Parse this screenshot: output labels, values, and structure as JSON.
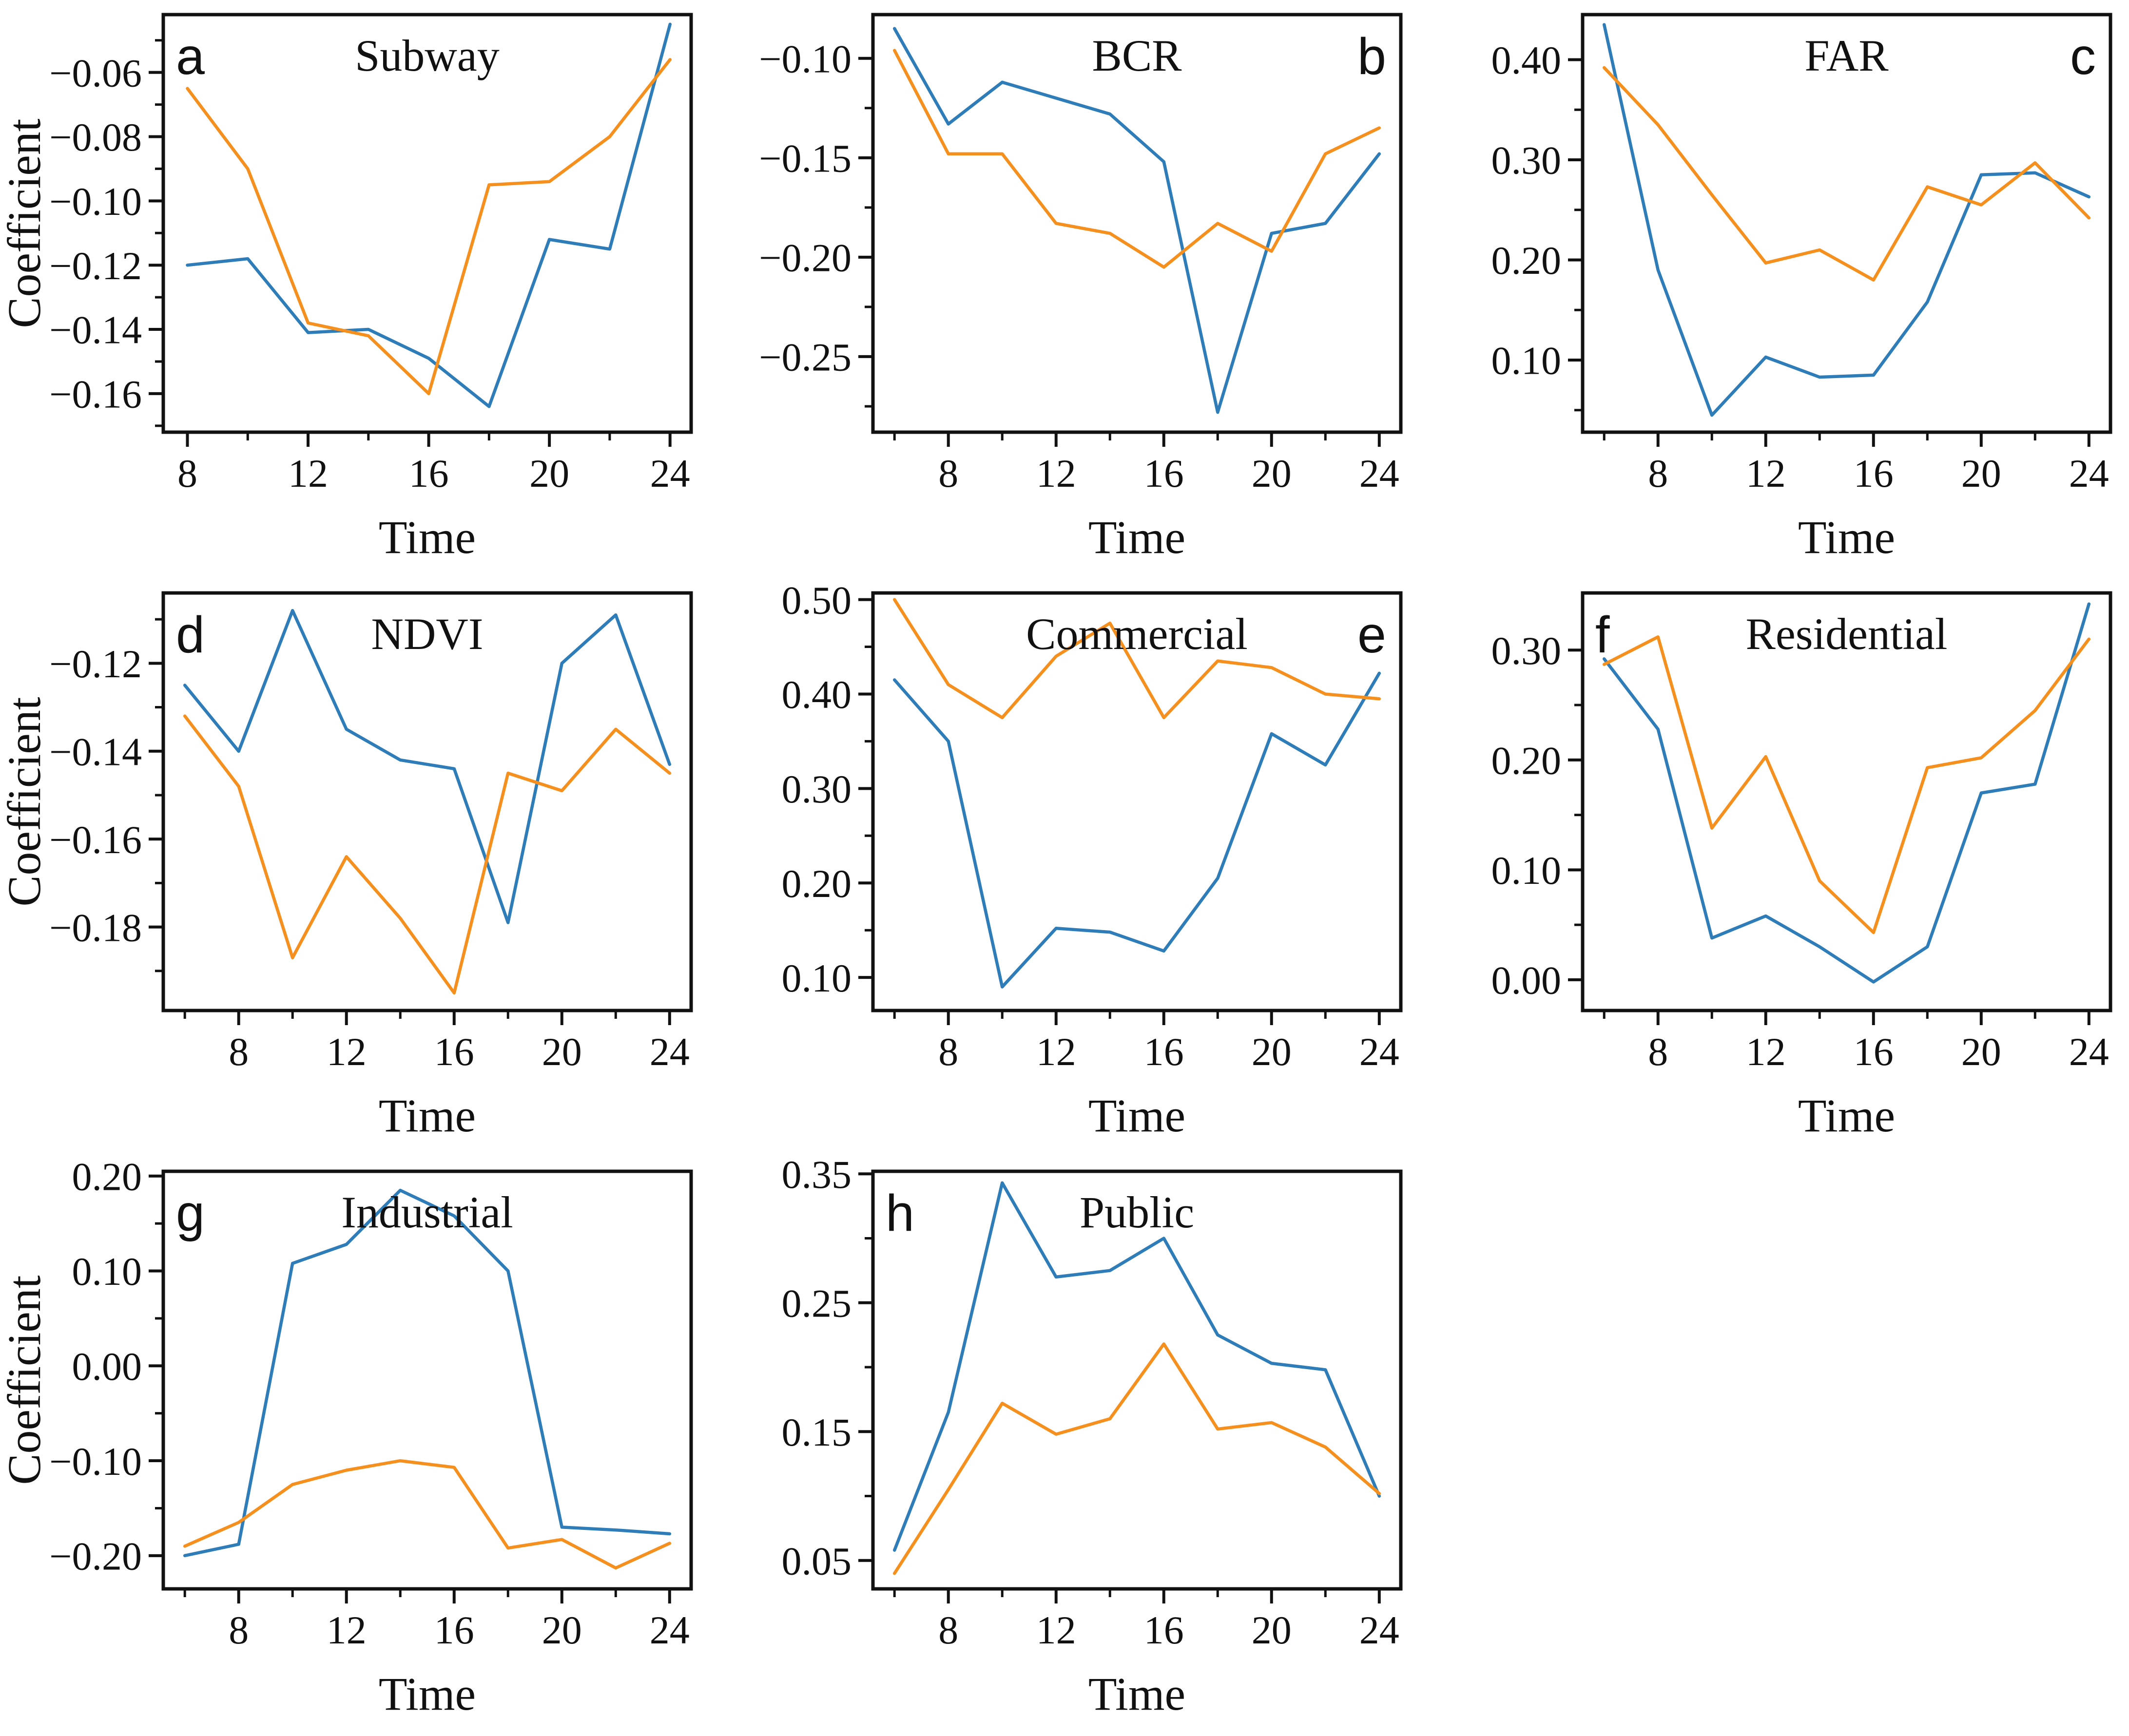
{
  "figure": {
    "xlabel": "Time",
    "ylabel": "Coefficient",
    "colors": {
      "blue": "#2e7cb8",
      "orange": "#f5901f",
      "frame": "#111111"
    },
    "series_names": [
      "blue",
      "orange"
    ]
  },
  "chart_data": [
    {
      "type": "line",
      "id": "a",
      "letter": "a",
      "letter_side": "left",
      "title": "Subway",
      "show_ylabel": true,
      "xlim": [
        7.2,
        24.7
      ],
      "ylim": [
        -0.172,
        -0.042
      ],
      "xticks": {
        "values": [
          8,
          12,
          16,
          20,
          24
        ],
        "labels": [
          "8",
          "12",
          "16",
          "20",
          "24"
        ]
      },
      "xminor": [
        10,
        14,
        18,
        22
      ],
      "yticks": {
        "values": [
          -0.06,
          -0.08,
          -0.1,
          -0.12,
          -0.14,
          -0.16
        ],
        "labels": [
          "−0.06",
          "−0.08",
          "−0.10",
          "−0.12",
          "−0.14",
          "−0.16"
        ]
      },
      "yminor": [
        -0.05,
        -0.07,
        -0.09,
        -0.11,
        -0.13,
        -0.15,
        -0.17
      ],
      "x": [
        8,
        10,
        12,
        14,
        16,
        18,
        20,
        22,
        24
      ],
      "series": [
        {
          "name": "blue",
          "values": [
            -0.12,
            -0.118,
            -0.141,
            -0.14,
            -0.149,
            -0.164,
            -0.112,
            -0.115,
            -0.045
          ]
        },
        {
          "name": "orange",
          "values": [
            -0.065,
            -0.09,
            -0.138,
            -0.142,
            -0.16,
            -0.095,
            -0.094,
            -0.08,
            -0.056
          ]
        }
      ]
    },
    {
      "type": "line",
      "id": "b",
      "letter": "b",
      "letter_side": "right",
      "title": "BCR",
      "show_ylabel": false,
      "xlim": [
        5.2,
        24.8
      ],
      "ylim": [
        -0.288,
        -0.078
      ],
      "xticks": {
        "values": [
          8,
          12,
          16,
          20,
          24
        ],
        "labels": [
          "8",
          "12",
          "16",
          "20",
          "24"
        ]
      },
      "xminor": [
        6,
        10,
        14,
        18,
        22
      ],
      "yticks": {
        "values": [
          -0.1,
          -0.15,
          -0.2,
          -0.25
        ],
        "labels": [
          "−0.10",
          "−0.15",
          "−0.20",
          "−0.25"
        ]
      },
      "yminor": [
        -0.125,
        -0.175,
        -0.225,
        -0.275
      ],
      "x": [
        6,
        8,
        10,
        12,
        14,
        16,
        18,
        20,
        22,
        24
      ],
      "series": [
        {
          "name": "blue",
          "values": [
            -0.085,
            -0.133,
            -0.112,
            -0.12,
            -0.128,
            -0.152,
            -0.278,
            -0.188,
            -0.183,
            -0.148
          ]
        },
        {
          "name": "orange",
          "values": [
            -0.096,
            -0.148,
            -0.148,
            -0.183,
            -0.188,
            -0.205,
            -0.183,
            -0.197,
            -0.148,
            -0.135
          ]
        }
      ]
    },
    {
      "type": "line",
      "id": "c",
      "letter": "c",
      "letter_side": "right",
      "title": "FAR",
      "show_ylabel": false,
      "xlim": [
        5.2,
        24.8
      ],
      "ylim": [
        0.028,
        0.445
      ],
      "xticks": {
        "values": [
          8,
          12,
          16,
          20,
          24
        ],
        "labels": [
          "8",
          "12",
          "16",
          "20",
          "24"
        ]
      },
      "xminor": [
        6,
        10,
        14,
        18,
        22
      ],
      "yticks": {
        "values": [
          0.4,
          0.3,
          0.2,
          0.1
        ],
        "labels": [
          "0.40",
          "0.30",
          "0.20",
          "0.10"
        ]
      },
      "yminor": [
        0.05,
        0.15,
        0.25,
        0.35
      ],
      "x": [
        6,
        8,
        10,
        12,
        14,
        16,
        18,
        20,
        22,
        24
      ],
      "series": [
        {
          "name": "blue",
          "values": [
            0.435,
            0.19,
            0.045,
            0.103,
            0.083,
            0.085,
            0.158,
            0.285,
            0.287,
            0.263
          ]
        },
        {
          "name": "orange",
          "values": [
            0.392,
            0.335,
            0.265,
            0.197,
            0.21,
            0.18,
            0.273,
            0.255,
            0.297,
            0.242
          ]
        }
      ]
    },
    {
      "type": "line",
      "id": "d",
      "letter": "d",
      "letter_side": "left",
      "title": "NDVI",
      "show_ylabel": true,
      "xlim": [
        5.2,
        24.8
      ],
      "ylim": [
        -0.199,
        -0.104
      ],
      "xticks": {
        "values": [
          8,
          12,
          16,
          20,
          24
        ],
        "labels": [
          "8",
          "12",
          "16",
          "20",
          "24"
        ]
      },
      "xminor": [
        6,
        10,
        14,
        18,
        22
      ],
      "yticks": {
        "values": [
          -0.12,
          -0.14,
          -0.16,
          -0.18
        ],
        "labels": [
          "−0.12",
          "−0.14",
          "−0.16",
          "−0.18"
        ]
      },
      "yminor": [
        -0.11,
        -0.13,
        -0.15,
        -0.17,
        -0.19
      ],
      "x": [
        6,
        8,
        10,
        12,
        14,
        16,
        18,
        20,
        22,
        24
      ],
      "series": [
        {
          "name": "blue",
          "values": [
            -0.125,
            -0.14,
            -0.108,
            -0.135,
            -0.142,
            -0.144,
            -0.179,
            -0.12,
            -0.109,
            -0.143
          ]
        },
        {
          "name": "orange",
          "values": [
            -0.132,
            -0.148,
            -0.187,
            -0.164,
            -0.178,
            -0.195,
            -0.145,
            -0.149,
            -0.135,
            -0.145
          ]
        }
      ]
    },
    {
      "type": "line",
      "id": "e",
      "letter": "e",
      "letter_side": "right",
      "title": "Commercial",
      "show_ylabel": false,
      "xlim": [
        5.2,
        24.8
      ],
      "ylim": [
        0.065,
        0.507
      ],
      "xticks": {
        "values": [
          8,
          12,
          16,
          20,
          24
        ],
        "labels": [
          "8",
          "12",
          "16",
          "20",
          "24"
        ]
      },
      "xminor": [
        6,
        10,
        14,
        18,
        22
      ],
      "yticks": {
        "values": [
          0.5,
          0.4,
          0.3,
          0.2,
          0.1
        ],
        "labels": [
          "0.50",
          "0.40",
          "0.30",
          "0.20",
          "0.10"
        ]
      },
      "yminor": [
        0.15,
        0.25,
        0.35,
        0.45
      ],
      "x": [
        6,
        8,
        10,
        12,
        14,
        16,
        18,
        20,
        22,
        24
      ],
      "series": [
        {
          "name": "blue",
          "values": [
            0.415,
            0.35,
            0.09,
            0.152,
            0.148,
            0.128,
            0.205,
            0.358,
            0.325,
            0.422
          ]
        },
        {
          "name": "orange",
          "values": [
            0.5,
            0.41,
            0.375,
            0.44,
            0.475,
            0.375,
            0.435,
            0.428,
            0.4,
            0.395
          ]
        }
      ]
    },
    {
      "type": "line",
      "id": "f",
      "letter": "f",
      "letter_side": "left",
      "title": "Residential",
      "show_ylabel": false,
      "xlim": [
        5.2,
        24.8
      ],
      "ylim": [
        -0.028,
        0.352
      ],
      "xticks": {
        "values": [
          8,
          12,
          16,
          20,
          24
        ],
        "labels": [
          "8",
          "12",
          "16",
          "20",
          "24"
        ]
      },
      "xminor": [
        6,
        10,
        14,
        18,
        22
      ],
      "yticks": {
        "values": [
          0.3,
          0.2,
          0.1,
          0.0
        ],
        "labels": [
          "0.30",
          "0.20",
          "0.10",
          "0.00"
        ]
      },
      "yminor": [
        0.05,
        0.15,
        0.25
      ],
      "x": [
        6,
        8,
        10,
        12,
        14,
        16,
        18,
        20,
        22,
        24
      ],
      "series": [
        {
          "name": "blue",
          "values": [
            0.292,
            0.228,
            0.038,
            0.058,
            0.03,
            -0.002,
            0.03,
            0.17,
            0.178,
            0.342
          ]
        },
        {
          "name": "orange",
          "values": [
            0.287,
            0.312,
            0.138,
            0.203,
            0.09,
            0.043,
            0.193,
            0.202,
            0.245,
            0.31
          ]
        }
      ]
    },
    {
      "type": "line",
      "id": "g",
      "letter": "g",
      "letter_side": "left",
      "title": "Industrial",
      "show_ylabel": true,
      "xlim": [
        5.2,
        24.8
      ],
      "ylim": [
        -0.235,
        0.205
      ],
      "xticks": {
        "values": [
          8,
          12,
          16,
          20,
          24
        ],
        "labels": [
          "8",
          "12",
          "16",
          "20",
          "24"
        ]
      },
      "xminor": [
        6,
        10,
        14,
        18,
        22
      ],
      "yticks": {
        "values": [
          0.2,
          0.1,
          0.0,
          -0.1,
          -0.2
        ],
        "labels": [
          "0.20",
          "0.10",
          "0.00",
          "−0.10",
          "−0.20"
        ]
      },
      "yminor": [
        0.15,
        0.05,
        -0.05,
        -0.15
      ],
      "x": [
        6,
        8,
        10,
        12,
        14,
        16,
        18,
        20,
        22,
        24
      ],
      "series": [
        {
          "name": "blue",
          "values": [
            -0.2,
            -0.188,
            0.108,
            0.128,
            0.185,
            0.158,
            0.1,
            -0.17,
            -0.173,
            -0.177
          ]
        },
        {
          "name": "orange",
          "values": [
            -0.19,
            -0.165,
            -0.125,
            -0.11,
            -0.1,
            -0.107,
            -0.192,
            -0.183,
            -0.213,
            -0.187
          ]
        }
      ]
    },
    {
      "type": "line",
      "id": "h",
      "letter": "h",
      "letter_side": "left",
      "title": "Public",
      "show_ylabel": false,
      "xlim": [
        5.2,
        24.8
      ],
      "ylim": [
        0.028,
        0.352
      ],
      "xticks": {
        "values": [
          8,
          12,
          16,
          20,
          24
        ],
        "labels": [
          "8",
          "12",
          "16",
          "20",
          "24"
        ]
      },
      "xminor": [
        6,
        10,
        14,
        18,
        22
      ],
      "yticks": {
        "values": [
          0.35,
          0.25,
          0.15,
          0.05
        ],
        "labels": [
          "0.35",
          "0.25",
          "0.15",
          "0.05"
        ]
      },
      "yminor": [
        0.1,
        0.2,
        0.3
      ],
      "x": [
        6,
        8,
        10,
        12,
        14,
        16,
        18,
        20,
        22,
        24
      ],
      "series": [
        {
          "name": "blue",
          "values": [
            0.058,
            0.165,
            0.343,
            0.27,
            0.275,
            0.3,
            0.225,
            0.203,
            0.198,
            0.1
          ]
        },
        {
          "name": "orange",
          "values": [
            0.04,
            0.105,
            0.172,
            0.148,
            0.16,
            0.218,
            0.152,
            0.157,
            0.138,
            0.102
          ]
        }
      ]
    }
  ]
}
